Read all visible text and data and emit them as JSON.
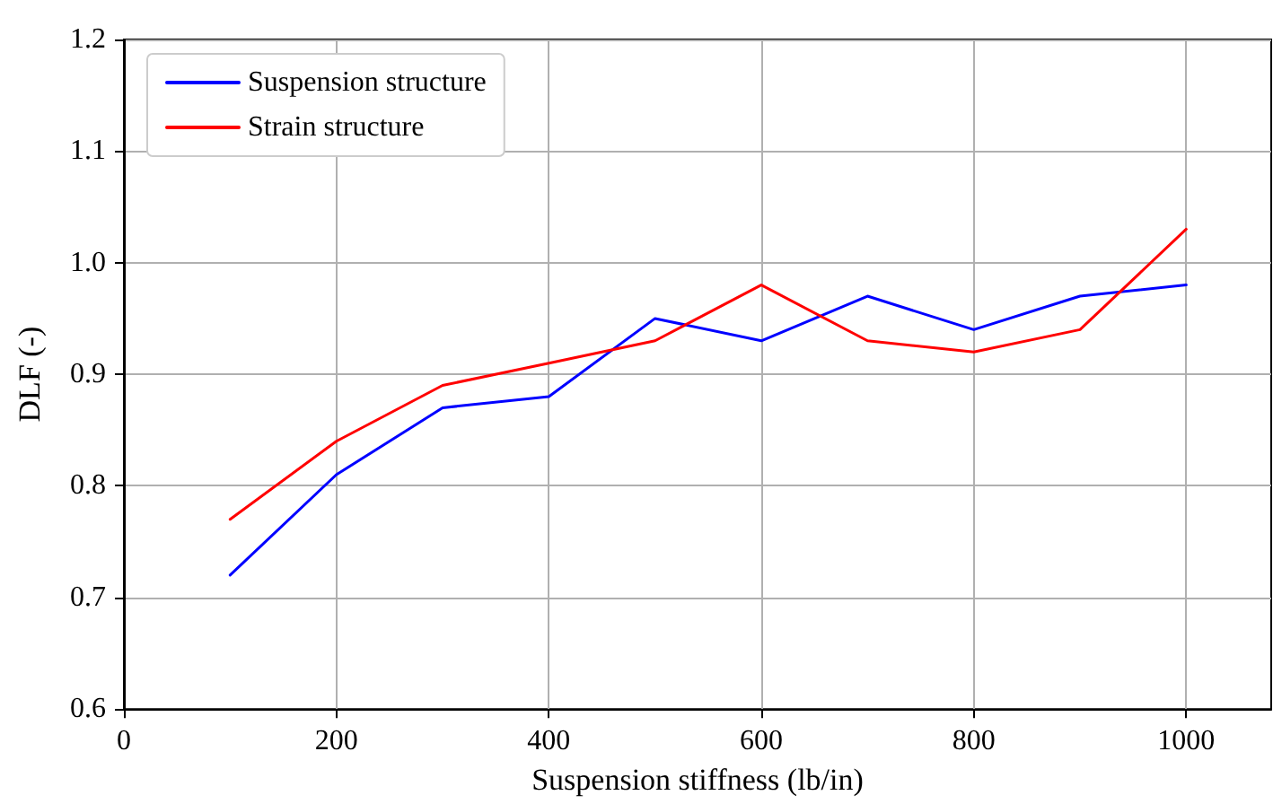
{
  "chart_data": {
    "type": "line",
    "xlabel": "Suspension stiffness (lb/in)",
    "ylabel": "DLF (-)",
    "x": [
      100,
      200,
      300,
      400,
      500,
      600,
      700,
      800,
      900,
      1000
    ],
    "series": [
      {
        "name": "Suspension structure",
        "color": "#0000ff",
        "values": [
          0.72,
          0.81,
          0.87,
          0.88,
          0.95,
          0.93,
          0.97,
          0.94,
          0.97,
          0.98
        ]
      },
      {
        "name": "Strain structure",
        "color": "#ff0000",
        "values": [
          0.77,
          0.84,
          0.89,
          0.91,
          0.93,
          0.98,
          0.93,
          0.92,
          0.94,
          1.03
        ]
      }
    ],
    "xlim": [
      0,
      1080
    ],
    "xticks": [
      0,
      200,
      400,
      600,
      800,
      1000
    ],
    "ylim": [
      0.6,
      1.2
    ],
    "yticks": [
      0.6,
      0.7,
      0.8,
      0.9,
      {
        "value": 1,
        "label": "1.0"
      },
      1.1,
      1.2
    ],
    "grid": true,
    "legend": "top left",
    "marker": "none",
    "line_style": "solid"
  }
}
